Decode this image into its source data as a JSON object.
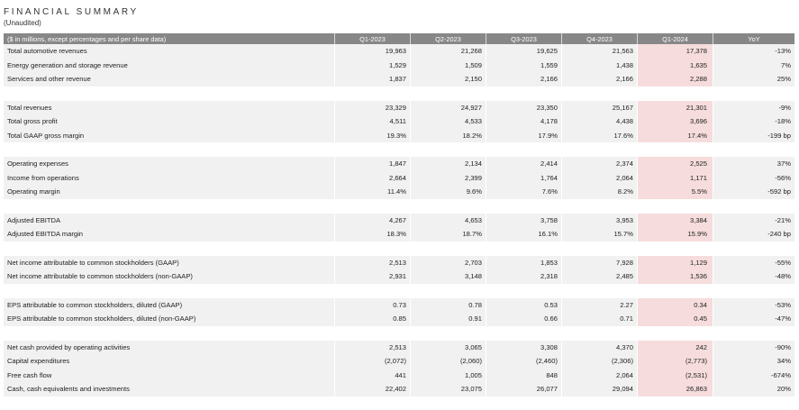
{
  "header": {
    "title": "FINANCIAL SUMMARY",
    "subtitle": "(Unaudited)"
  },
  "table": {
    "columns": [
      "($ in millions, except percentages and per share data)",
      "Q1-2023",
      "Q2-2023",
      "Q3-2023",
      "Q4-2023",
      "Q1-2024",
      "YoY"
    ],
    "highlight_color": "#f6dcdc",
    "groups": [
      [
        {
          "label": "Total automotive revenues",
          "values": [
            "19,963",
            "21,268",
            "19,625",
            "21,563",
            "17,378",
            "-13%"
          ]
        },
        {
          "label": "Energy generation and storage revenue",
          "values": [
            "1,529",
            "1,509",
            "1,559",
            "1,438",
            "1,635",
            "7%"
          ]
        },
        {
          "label": "Services and other revenue",
          "values": [
            "1,837",
            "2,150",
            "2,166",
            "2,166",
            "2,288",
            "25%"
          ]
        }
      ],
      [
        {
          "label": "Total revenues",
          "values": [
            "23,329",
            "24,927",
            "23,350",
            "25,167",
            "21,301",
            "-9%"
          ]
        },
        {
          "label": "Total gross profit",
          "values": [
            "4,511",
            "4,533",
            "4,178",
            "4,438",
            "3,696",
            "-18%"
          ]
        },
        {
          "label": "Total GAAP gross margin",
          "values": [
            "19.3%",
            "18.2%",
            "17.9%",
            "17.6%",
            "17.4%",
            "-199 bp"
          ]
        }
      ],
      [
        {
          "label": "Operating expenses",
          "values": [
            "1,847",
            "2,134",
            "2,414",
            "2,374",
            "2,525",
            "37%"
          ]
        },
        {
          "label": "Income from operations",
          "values": [
            "2,664",
            "2,399",
            "1,764",
            "2,064",
            "1,171",
            "-56%"
          ]
        },
        {
          "label": "Operating margin",
          "values": [
            "11.4%",
            "9.6%",
            "7.6%",
            "8.2%",
            "5.5%",
            "-592 bp"
          ]
        }
      ],
      [
        {
          "label": "Adjusted EBITDA",
          "values": [
            "4,267",
            "4,653",
            "3,758",
            "3,953",
            "3,384",
            "-21%"
          ]
        },
        {
          "label": "Adjusted EBITDA margin",
          "values": [
            "18.3%",
            "18.7%",
            "16.1%",
            "15.7%",
            "15.9%",
            "-240 bp"
          ]
        }
      ],
      [
        {
          "label": "Net income attributable to common stockholders (GAAP)",
          "values": [
            "2,513",
            "2,703",
            "1,853",
            "7,928",
            "1,129",
            "-55%"
          ]
        },
        {
          "label": "Net income attributable to common stockholders (non-GAAP)",
          "values": [
            "2,931",
            "3,148",
            "2,318",
            "2,485",
            "1,536",
            "-48%"
          ]
        }
      ],
      [
        {
          "label": "EPS attributable to common stockholders, diluted (GAAP)",
          "values": [
            "0.73",
            "0.78",
            "0.53",
            "2.27",
            "0.34",
            "-53%"
          ]
        },
        {
          "label": "EPS attributable to common stockholders, diluted (non-GAAP)",
          "values": [
            "0.85",
            "0.91",
            "0.66",
            "0.71",
            "0.45",
            "-47%"
          ]
        }
      ],
      [
        {
          "label": "Net cash provided by operating activities",
          "values": [
            "2,513",
            "3,065",
            "3,308",
            "4,370",
            "242",
            "-90%"
          ]
        },
        {
          "label": "Capital expenditures",
          "values": [
            "(2,072)",
            "(2,060)",
            "(2,460)",
            "(2,306)",
            "(2,773)",
            "34%"
          ]
        },
        {
          "label": "Free cash flow",
          "values": [
            "441",
            "1,005",
            "848",
            "2,064",
            "(2,531)",
            "-674%"
          ]
        },
        {
          "label": "Cash, cash equivalents and investments",
          "values": [
            "22,402",
            "23,075",
            "26,077",
            "29,094",
            "26,863",
            "20%"
          ]
        }
      ]
    ]
  }
}
